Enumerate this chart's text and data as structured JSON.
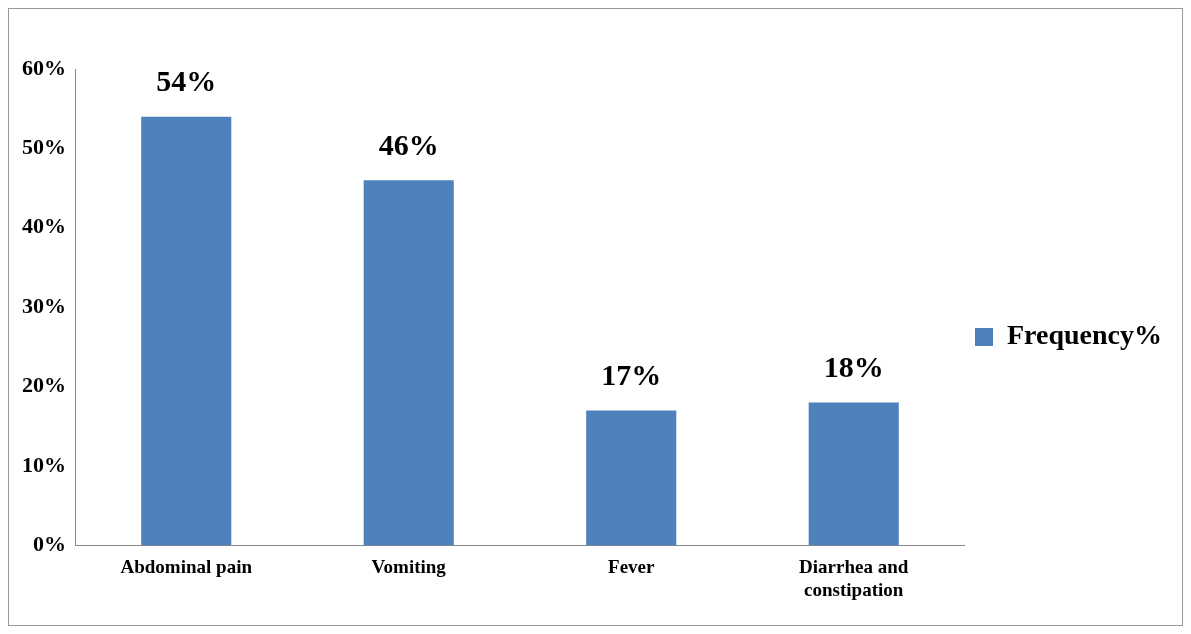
{
  "chart_data": {
    "type": "bar",
    "categories": [
      "Abdominal pain",
      "Vomiting",
      "Fever",
      "Diarrhea and constipation"
    ],
    "series": [
      {
        "name": "Frequency%",
        "color": "#4f81bd",
        "values": [
          54,
          46,
          17,
          18
        ],
        "value_labels": [
          "54%",
          "46%",
          "17%",
          "18%"
        ]
      }
    ],
    "ylim": [
      0,
      60
    ],
    "yticks": [
      {
        "value": 0,
        "label": "0%"
      },
      {
        "value": 10,
        "label": "10%"
      },
      {
        "value": 20,
        "label": "20%"
      },
      {
        "value": 30,
        "label": "30%"
      },
      {
        "value": 40,
        "label": "40%"
      },
      {
        "value": 50,
        "label": "50%"
      },
      {
        "value": 60,
        "label": "60%"
      }
    ],
    "grid": false,
    "legend": "right"
  }
}
